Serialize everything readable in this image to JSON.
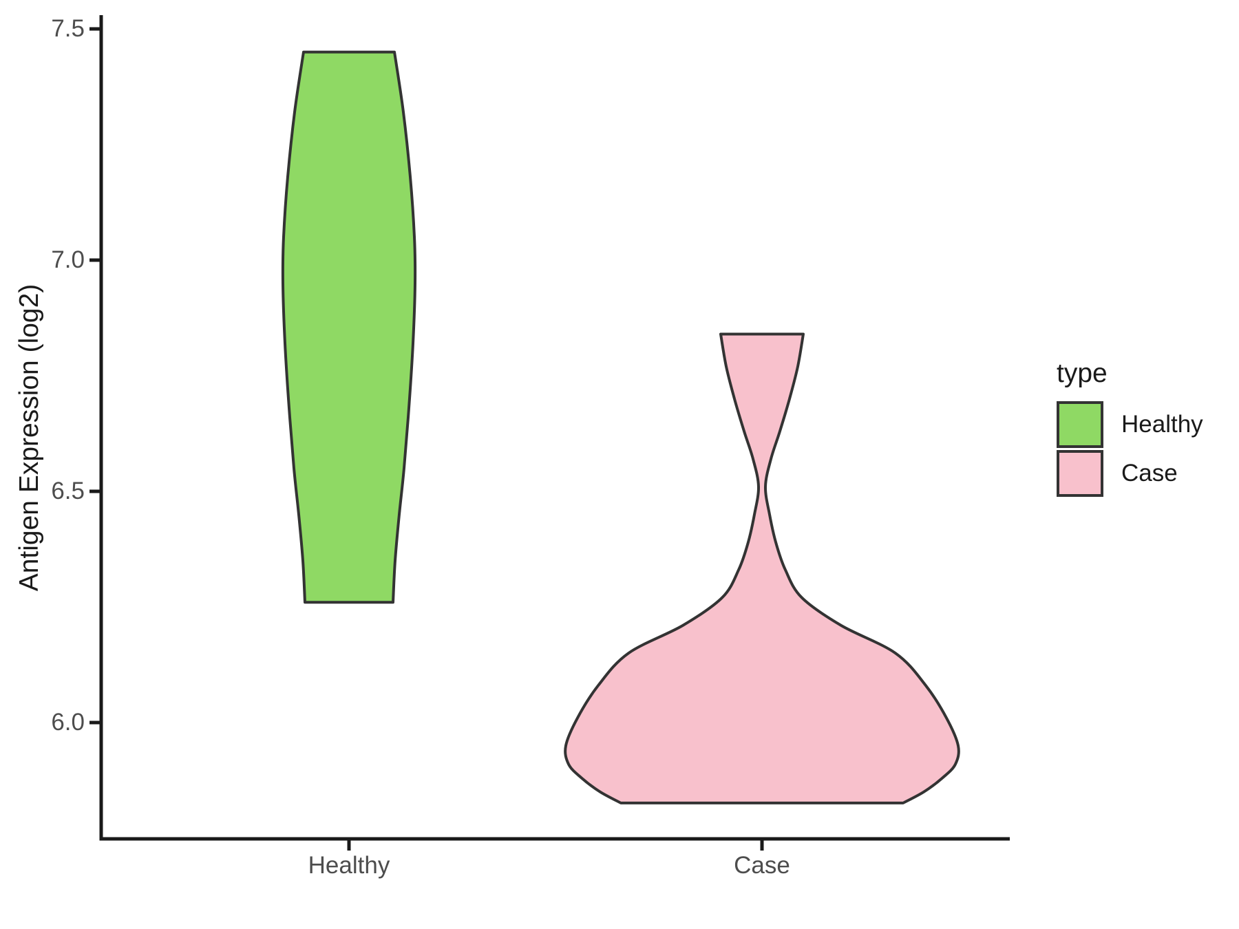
{
  "chart_data": {
    "type": "violin",
    "title": "",
    "xlabel": "",
    "ylabel": "Antigen Expression (log2)",
    "categories": [
      "Healthy",
      "Case"
    ],
    "y_axis": {
      "ticks": [
        "7.5",
        "7.0",
        "6.5",
        "6.0"
      ],
      "tick_values": [
        7.5,
        7.0,
        6.5,
        6.0
      ],
      "range_shown": [
        5.75,
        7.53
      ],
      "grid": false
    },
    "legend": {
      "title": "type",
      "position": "right",
      "entries": [
        {
          "label": "Healthy",
          "color": "#8FD964"
        },
        {
          "label": "Case",
          "color": "#F8C1CC"
        }
      ]
    },
    "colors": {
      "healthy_fill": "#8FD964",
      "case_fill": "#F8C1CC",
      "violin_outline": "#333333",
      "axis_line": "#1a1a1a",
      "tick_text": "#4d4d4d"
    },
    "series": [
      {
        "name": "Healthy",
        "fill": "#8FD964",
        "outline_color": "#333333",
        "data_range": [
          6.26,
          7.45
        ],
        "flat_top": true,
        "flat_bottom": true,
        "density_profile": [
          [
            7.45,
            66
          ],
          [
            7.32,
            79
          ],
          [
            7.18,
            89
          ],
          [
            7.05,
            95
          ],
          [
            6.95,
            96
          ],
          [
            6.82,
            93
          ],
          [
            6.68,
            87
          ],
          [
            6.55,
            80
          ],
          [
            6.45,
            73
          ],
          [
            6.35,
            67
          ],
          [
            6.26,
            64
          ]
        ]
      },
      {
        "name": "Case",
        "fill": "#F8C1CC",
        "outline_color": "#333333",
        "data_range": [
          5.83,
          6.84
        ],
        "flat_top": true,
        "flat_bottom": true,
        "waist_value": 6.51,
        "density_profile": [
          [
            6.84,
            60
          ],
          [
            6.77,
            52
          ],
          [
            6.7,
            40
          ],
          [
            6.63,
            26
          ],
          [
            6.57,
            13
          ],
          [
            6.51,
            5
          ],
          [
            6.45,
            11
          ],
          [
            6.39,
            20
          ],
          [
            6.33,
            34
          ],
          [
            6.27,
            58
          ],
          [
            6.21,
            115
          ],
          [
            6.15,
            194
          ],
          [
            6.08,
            238
          ],
          [
            6.01,
            268
          ],
          [
            5.95,
            285
          ],
          [
            5.91,
            281
          ],
          [
            5.88,
            262
          ],
          [
            5.85,
            235
          ],
          [
            5.826,
            205
          ]
        ]
      }
    ]
  }
}
